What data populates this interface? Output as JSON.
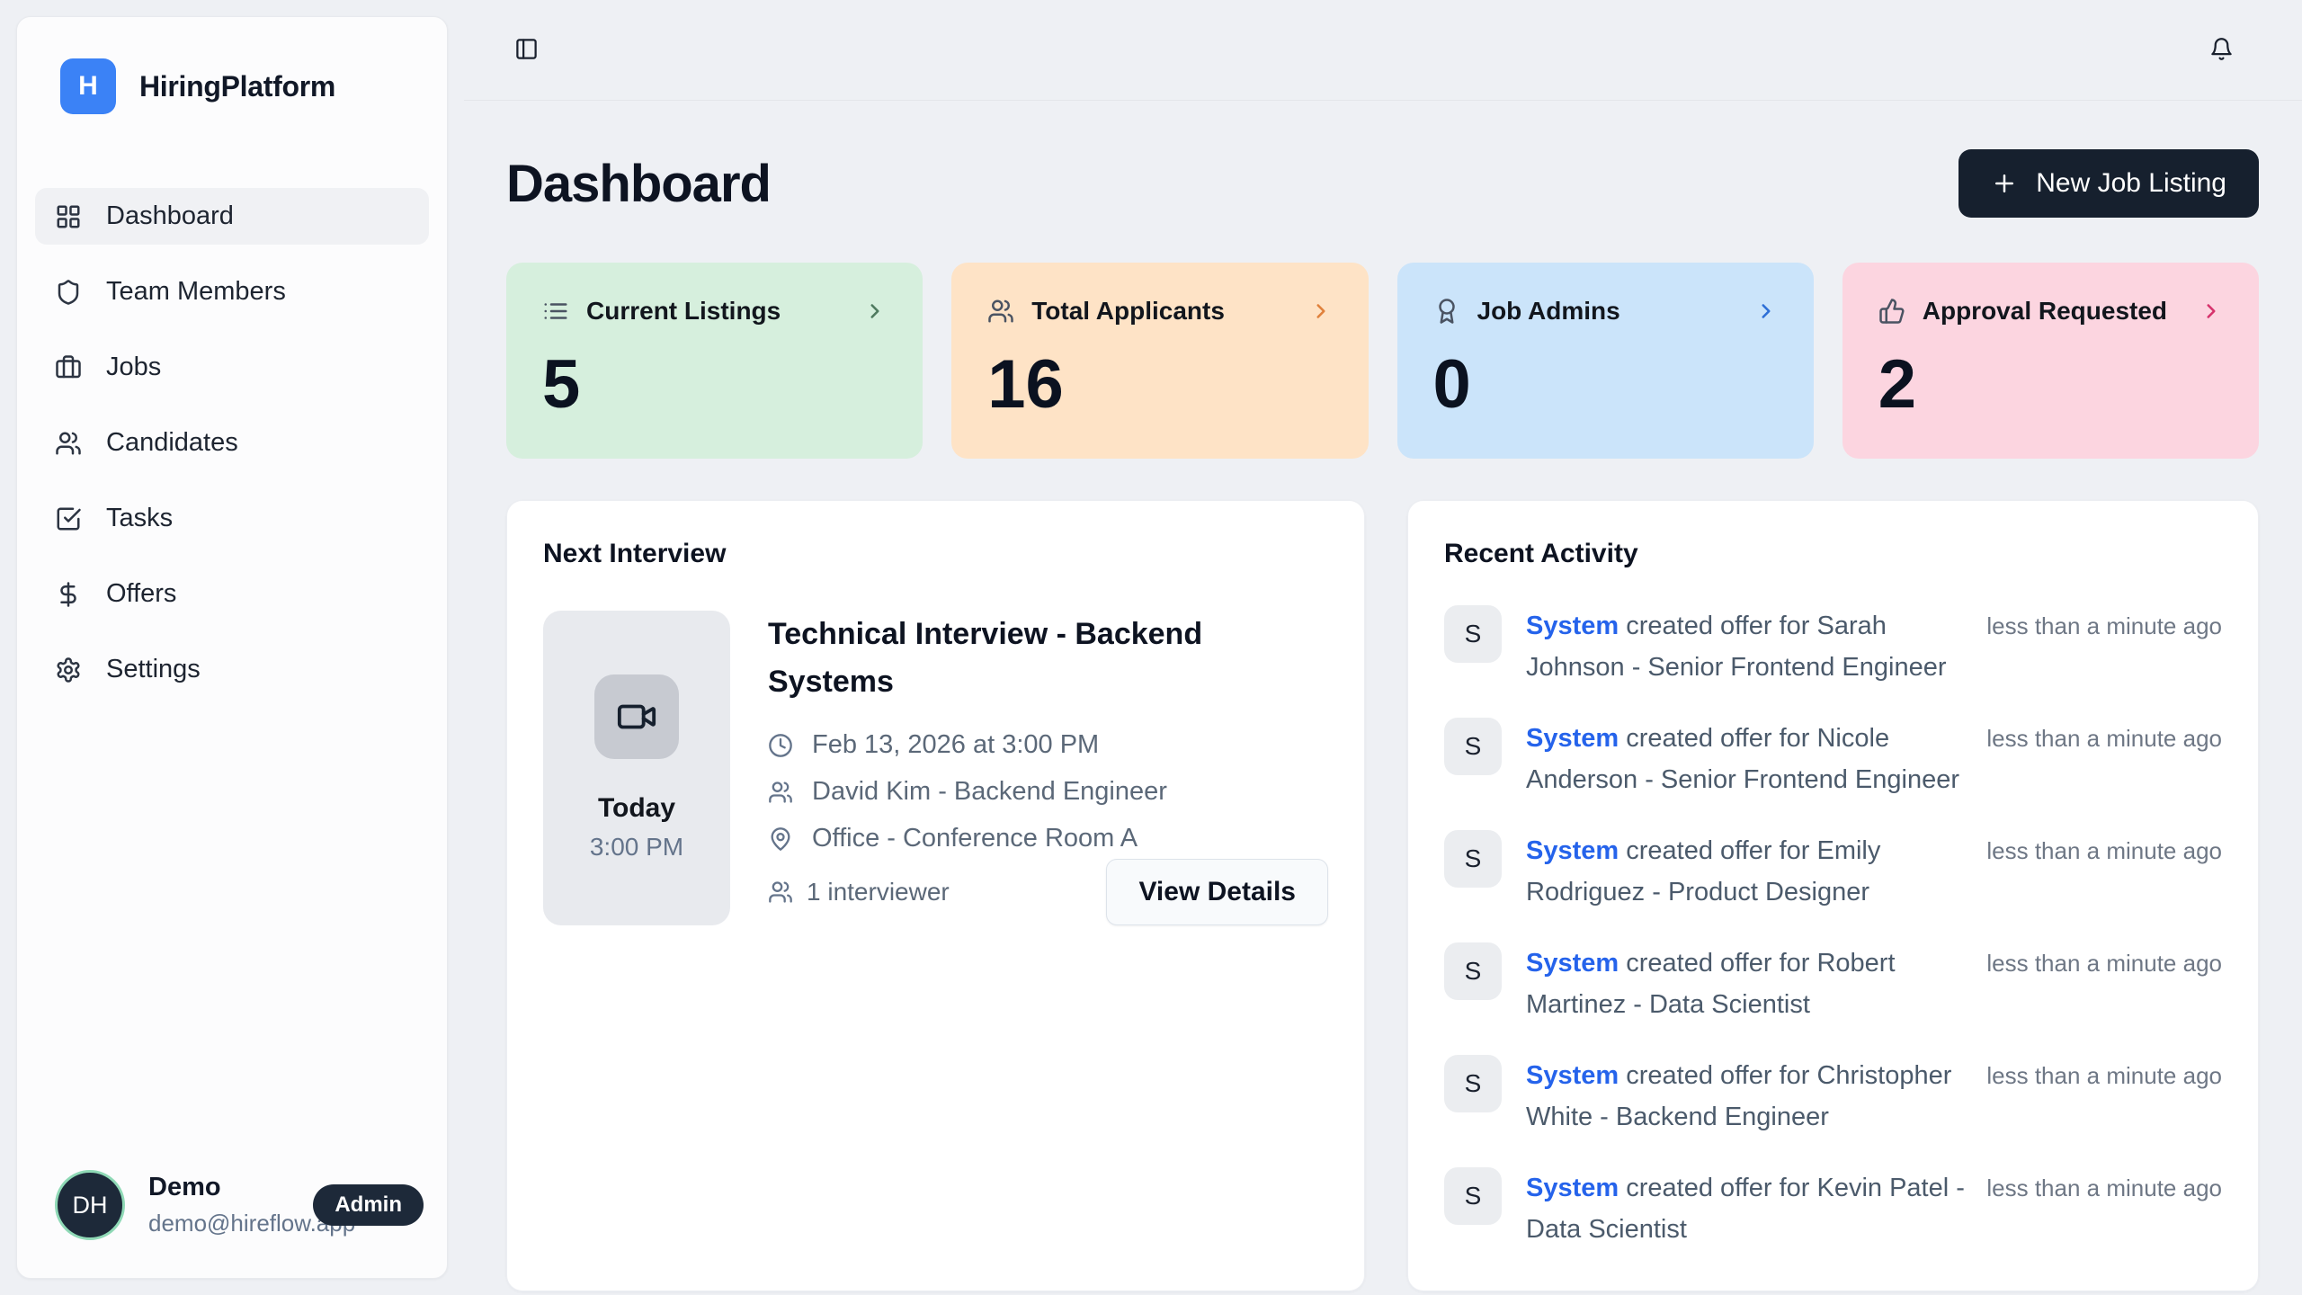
{
  "app": {
    "name": "HiringPlatform",
    "logo_letter": "H"
  },
  "sidebar": {
    "items": [
      {
        "label": "Dashboard",
        "icon": "dashboard-icon",
        "active": true
      },
      {
        "label": "Team Members",
        "icon": "shield-icon",
        "active": false
      },
      {
        "label": "Jobs",
        "icon": "briefcase-icon",
        "active": false
      },
      {
        "label": "Candidates",
        "icon": "users-icon",
        "active": false
      },
      {
        "label": "Tasks",
        "icon": "check-square-icon",
        "active": false
      },
      {
        "label": "Offers",
        "icon": "dollar-icon",
        "active": false
      },
      {
        "label": "Settings",
        "icon": "gear-icon",
        "active": false
      }
    ],
    "user": {
      "initials": "DH",
      "name": "Demo",
      "role_badge": "Admin",
      "email": "demo@hireflow.app"
    }
  },
  "header": {
    "title": "Dashboard",
    "new_job_button": "New Job Listing"
  },
  "stats": [
    {
      "label": "Current Listings",
      "value": "5",
      "icon": "list-icon",
      "bg": "#d6efdd",
      "accent": "#4f7a5f"
    },
    {
      "label": "Total Applicants",
      "value": "16",
      "icon": "users-icon",
      "bg": "#fee3c6",
      "accent": "#e0813c"
    },
    {
      "label": "Job Admins",
      "value": "0",
      "icon": "award-icon",
      "bg": "#cbe4fa",
      "accent": "#2e6fd6"
    },
    {
      "label": "Approval Requested",
      "value": "2",
      "icon": "thumbs-up-icon",
      "bg": "#fcd5e0",
      "accent": "#d6336c"
    }
  ],
  "next_interview": {
    "section_title": "Next Interview",
    "date_label": "Today",
    "time_label": "3:00 PM",
    "title": "Technical Interview - Backend Systems",
    "datetime": "Feb 13, 2026 at 3:00 PM",
    "interviewer": "David Kim - Backend Engineer",
    "location": "Office - Conference Room A",
    "interviewer_count": "1 interviewer",
    "view_details_label": "View Details"
  },
  "recent_activity": {
    "section_title": "Recent Activity",
    "items": [
      {
        "avatar": "S",
        "actor": "System",
        "description": "created offer for Sarah Johnson - Senior Frontend Engineer",
        "time": "less than a minute ago"
      },
      {
        "avatar": "S",
        "actor": "System",
        "description": "created offer for Nicole Anderson - Senior Frontend Engineer",
        "time": "less than a minute ago"
      },
      {
        "avatar": "S",
        "actor": "System",
        "description": "created offer for Emily Rodriguez - Product Designer",
        "time": "less than a minute ago"
      },
      {
        "avatar": "S",
        "actor": "System",
        "description": "created offer for Robert Martinez - Data Scientist",
        "time": "less than a minute ago"
      },
      {
        "avatar": "S",
        "actor": "System",
        "description": "created offer for Christopher White - Backend Engineer",
        "time": "less than a minute ago"
      },
      {
        "avatar": "S",
        "actor": "System",
        "description": "created offer for Kevin Patel - Data Scientist",
        "time": "less than a minute ago"
      }
    ]
  }
}
